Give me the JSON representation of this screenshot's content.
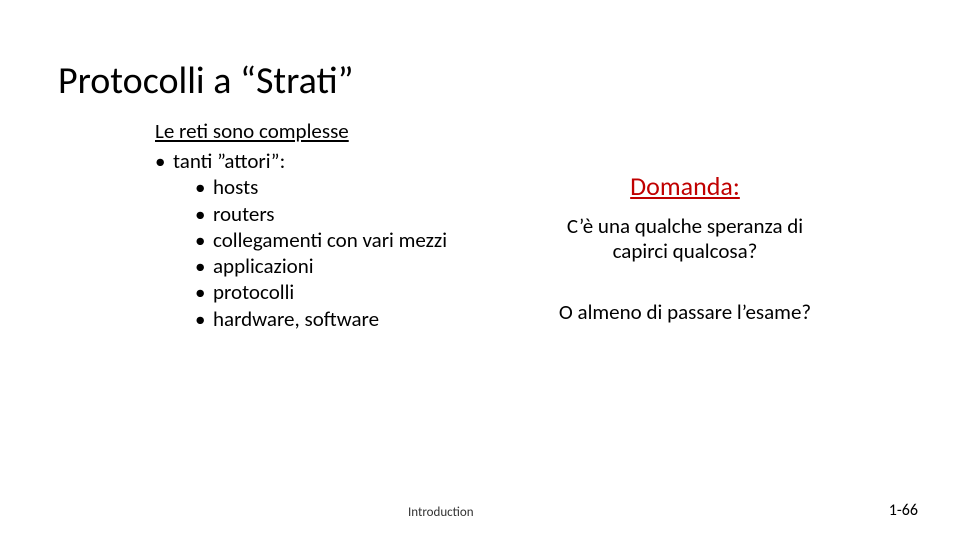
{
  "title": "Protocolli a “Strati”",
  "left": {
    "subtitle": "Le reti sono complesse",
    "bullet": "tanti ”attori”:",
    "items": [
      "hosts",
      "routers",
      "collegamenti con vari mezzi",
      "applicazioni",
      "protocolli",
      "hardware, software"
    ]
  },
  "right": {
    "heading": "Domanda:",
    "q1a": "C’è una qualche speranza di",
    "q1b": "capirci qualcosa?",
    "q2": "O almeno di passare l’esame?"
  },
  "footer": {
    "section": "Introduction",
    "page": "1-66"
  },
  "colors": {
    "accent": "#c00000",
    "text": "#000000",
    "bg": "#ffffff"
  },
  "fonts": {
    "title_size": 38,
    "body_size": 21,
    "question_title_size": 26,
    "footer_size": 13
  }
}
